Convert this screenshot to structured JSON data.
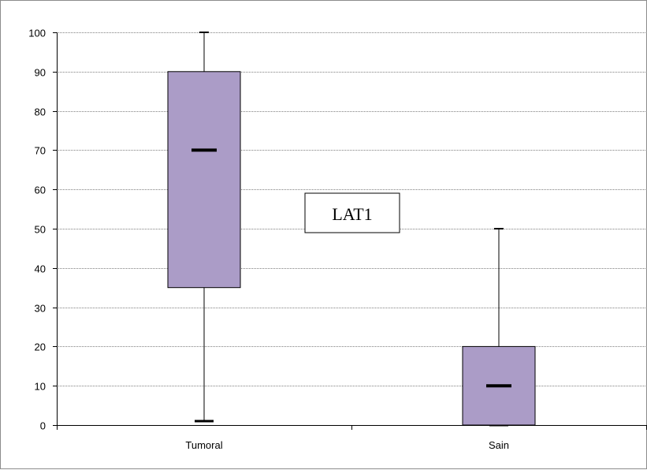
{
  "chart_data": {
    "type": "box",
    "title": "",
    "xlabel": "",
    "ylabel": "",
    "categories": [
      "Tumoral",
      "Sain"
    ],
    "boxes": [
      {
        "category": "Tumoral",
        "min": 1,
        "q1": 35,
        "median": 70,
        "q3": 90,
        "max": 100
      },
      {
        "category": "Sain",
        "min": 0,
        "q1": 0,
        "median": 10,
        "q3": 20,
        "max": 50
      }
    ],
    "ylim": [
      0,
      100
    ],
    "yticks": [
      0,
      10,
      20,
      30,
      40,
      50,
      60,
      70,
      80,
      90,
      100
    ],
    "grid": true,
    "annotation": "LAT1",
    "colors": {
      "box_fill": "#ab9cc7",
      "box_stroke": "#000000",
      "grid": "#808080"
    }
  }
}
